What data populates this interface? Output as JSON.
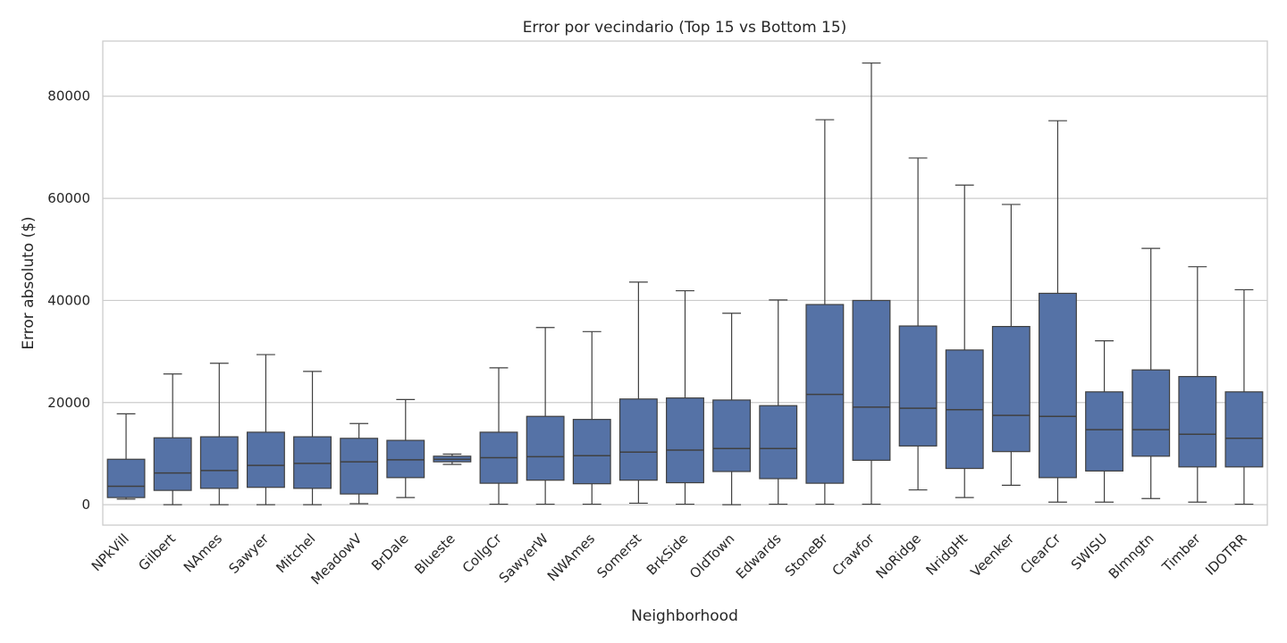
{
  "chart_data": {
    "type": "box",
    "title": "Error por vecindario (Top 15 vs Bottom 15)",
    "xlabel": "Neighborhood",
    "ylabel": "Error absoluto ($)",
    "ylim": [
      -4000,
      90800
    ],
    "yticks": [
      0,
      20000,
      40000,
      60000,
      80000
    ],
    "ytick_labels": [
      "0",
      "20000",
      "40000",
      "60000",
      "80000"
    ],
    "grid": "horizontal",
    "box_color": "#5572a6",
    "line_color": "#404040",
    "categories": [
      "NPkVill",
      "Gilbert",
      "NAmes",
      "Sawyer",
      "Mitchel",
      "MeadowV",
      "BrDale",
      "Blueste",
      "CollgCr",
      "SawyerW",
      "NWAmes",
      "Somerst",
      "BrkSide",
      "OldTown",
      "Edwards",
      "StoneBr",
      "Crawfor",
      "NoRidge",
      "NridgHt",
      "Veenker",
      "ClearCr",
      "SWISU",
      "Blmngtn",
      "Timber",
      "IDOTRR"
    ],
    "boxes": [
      {
        "whislo": 1100,
        "q1": 1400,
        "med": 3600,
        "q3": 8900,
        "whishi": 17800
      },
      {
        "whislo": 0,
        "q1": 2800,
        "med": 6200,
        "q3": 13100,
        "whishi": 25600
      },
      {
        "whislo": 0,
        "q1": 3200,
        "med": 6700,
        "q3": 13300,
        "whishi": 27700
      },
      {
        "whislo": 0,
        "q1": 3400,
        "med": 7700,
        "q3": 14200,
        "whishi": 29400
      },
      {
        "whislo": 0,
        "q1": 3200,
        "med": 8100,
        "q3": 13300,
        "whishi": 26100
      },
      {
        "whislo": 200,
        "q1": 2100,
        "med": 8400,
        "q3": 13000,
        "whishi": 15900
      },
      {
        "whislo": 1400,
        "q1": 5300,
        "med": 8800,
        "q3": 12600,
        "whishi": 20600
      },
      {
        "whislo": 7900,
        "q1": 8400,
        "med": 8900,
        "q3": 9500,
        "whishi": 9900
      },
      {
        "whislo": 100,
        "q1": 4200,
        "med": 9200,
        "q3": 14200,
        "whishi": 26800
      },
      {
        "whislo": 100,
        "q1": 4800,
        "med": 9400,
        "q3": 17300,
        "whishi": 34700
      },
      {
        "whislo": 100,
        "q1": 4100,
        "med": 9600,
        "q3": 16700,
        "whishi": 33900
      },
      {
        "whislo": 300,
        "q1": 4800,
        "med": 10300,
        "q3": 20700,
        "whishi": 43600
      },
      {
        "whislo": 100,
        "q1": 4300,
        "med": 10700,
        "q3": 20900,
        "whishi": 41900
      },
      {
        "whislo": 0,
        "q1": 6500,
        "med": 11000,
        "q3": 20500,
        "whishi": 37500
      },
      {
        "whislo": 100,
        "q1": 5100,
        "med": 11000,
        "q3": 19400,
        "whishi": 40100
      },
      {
        "whislo": 100,
        "q1": 4200,
        "med": 21600,
        "q3": 39200,
        "whishi": 75400
      },
      {
        "whislo": 100,
        "q1": 8700,
        "med": 19100,
        "q3": 40000,
        "whishi": 86500
      },
      {
        "whislo": 2900,
        "q1": 11500,
        "med": 18900,
        "q3": 35000,
        "whishi": 67900
      },
      {
        "whislo": 1400,
        "q1": 7100,
        "med": 18600,
        "q3": 30300,
        "whishi": 62600
      },
      {
        "whislo": 3800,
        "q1": 10400,
        "med": 17500,
        "q3": 34900,
        "whishi": 58800
      },
      {
        "whislo": 500,
        "q1": 5300,
        "med": 17300,
        "q3": 41400,
        "whishi": 75200
      },
      {
        "whislo": 500,
        "q1": 6600,
        "med": 14700,
        "q3": 22100,
        "whishi": 32100
      },
      {
        "whislo": 1200,
        "q1": 9500,
        "med": 14700,
        "q3": 26400,
        "whishi": 50200
      },
      {
        "whislo": 500,
        "q1": 7400,
        "med": 13800,
        "q3": 25100,
        "whishi": 46600
      },
      {
        "whislo": 100,
        "q1": 7400,
        "med": 13000,
        "q3": 22100,
        "whishi": 42100
      }
    ]
  }
}
